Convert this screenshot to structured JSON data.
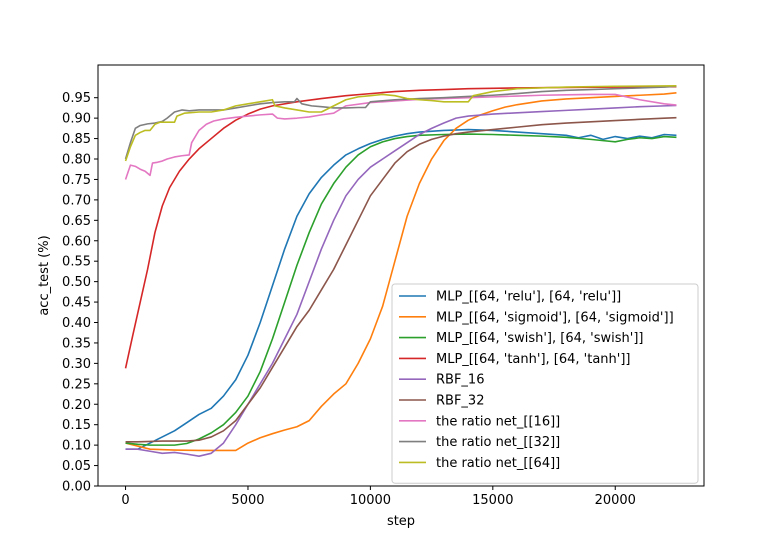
{
  "chart_data": {
    "type": "line",
    "title": "",
    "xlabel": "step",
    "ylabel": "acc_test (%)",
    "xlim": [
      -1125,
      23625
    ],
    "ylim": [
      0.0,
      1.03
    ],
    "xticks": [
      0,
      5000,
      10000,
      15000,
      20000
    ],
    "xtick_labels": [
      "0",
      "5000",
      "10000",
      "15000",
      "20000"
    ],
    "yticks": [
      0.0,
      0.05,
      0.1,
      0.15,
      0.2,
      0.25,
      0.3,
      0.35,
      0.4,
      0.45,
      0.5,
      0.55,
      0.6,
      0.65,
      0.7,
      0.75,
      0.8,
      0.85,
      0.9,
      0.95
    ],
    "ytick_labels": [
      "0.00",
      "0.05",
      "0.10",
      "0.15",
      "0.20",
      "0.25",
      "0.30",
      "0.35",
      "0.40",
      "0.45",
      "0.50",
      "0.55",
      "0.60",
      "0.65",
      "0.70",
      "0.75",
      "0.80",
      "0.85",
      "0.90",
      "0.95"
    ],
    "grid": false,
    "legend_position": "lower-right",
    "series": [
      {
        "name": "MLP_[[64, 'relu'], [64, 'relu']]",
        "color": "#1f77b4",
        "x": [
          0,
          500,
          1000,
          1500,
          2000,
          2500,
          3000,
          3500,
          4000,
          4500,
          5000,
          5500,
          6000,
          6500,
          7000,
          7500,
          8000,
          8500,
          9000,
          9500,
          10000,
          10500,
          11000,
          11500,
          12000,
          13000,
          14000,
          15000,
          16000,
          17000,
          18000,
          18500,
          19000,
          19500,
          20000,
          20500,
          21000,
          21500,
          22000,
          22500
        ],
        "y": [
          0.09,
          0.09,
          0.105,
          0.12,
          0.135,
          0.155,
          0.175,
          0.19,
          0.22,
          0.26,
          0.32,
          0.4,
          0.49,
          0.58,
          0.66,
          0.715,
          0.755,
          0.785,
          0.81,
          0.825,
          0.838,
          0.848,
          0.856,
          0.862,
          0.866,
          0.87,
          0.872,
          0.87,
          0.866,
          0.862,
          0.858,
          0.852,
          0.858,
          0.848,
          0.855,
          0.85,
          0.856,
          0.852,
          0.86,
          0.858
        ]
      },
      {
        "name": "MLP_[[64, 'sigmoid'], [64, 'sigmoid']]",
        "color": "#ff7f0e",
        "x": [
          0,
          1000,
          2000,
          3000,
          4000,
          4500,
          5000,
          5500,
          6000,
          6500,
          7000,
          7500,
          8000,
          8500,
          9000,
          9500,
          10000,
          10500,
          11000,
          11500,
          12000,
          12500,
          13000,
          13500,
          14000,
          14500,
          15000,
          15500,
          16000,
          17000,
          18000,
          19000,
          20000,
          21000,
          22000,
          22500
        ],
        "y": [
          0.105,
          0.09,
          0.088,
          0.087,
          0.087,
          0.087,
          0.105,
          0.118,
          0.128,
          0.137,
          0.145,
          0.16,
          0.195,
          0.225,
          0.25,
          0.3,
          0.36,
          0.44,
          0.55,
          0.66,
          0.74,
          0.8,
          0.845,
          0.875,
          0.895,
          0.908,
          0.918,
          0.927,
          0.933,
          0.942,
          0.947,
          0.95,
          0.953,
          0.956,
          0.959,
          0.962
        ]
      },
      {
        "name": "MLP_[[64, 'swish'], [64, 'swish']]",
        "color": "#2ca02c",
        "x": [
          0,
          500,
          1000,
          1500,
          2000,
          2500,
          3000,
          3500,
          4000,
          4500,
          5000,
          5500,
          6000,
          6500,
          7000,
          7500,
          8000,
          8500,
          9000,
          9500,
          10000,
          10500,
          11000,
          11500,
          12000,
          13000,
          14000,
          15000,
          16000,
          17000,
          18000,
          19000,
          19500,
          20000,
          20500,
          21000,
          21500,
          22000,
          22500
        ],
        "y": [
          0.105,
          0.102,
          0.1,
          0.1,
          0.1,
          0.104,
          0.115,
          0.13,
          0.15,
          0.18,
          0.22,
          0.28,
          0.36,
          0.45,
          0.54,
          0.62,
          0.69,
          0.74,
          0.78,
          0.81,
          0.83,
          0.842,
          0.85,
          0.855,
          0.858,
          0.86,
          0.861,
          0.86,
          0.858,
          0.856,
          0.853,
          0.848,
          0.845,
          0.842,
          0.848,
          0.852,
          0.85,
          0.855,
          0.853
        ]
      },
      {
        "name": "MLP_[[64, 'tanh'], [64, 'tanh']]",
        "color": "#d62728",
        "x": [
          0,
          300,
          600,
          900,
          1200,
          1500,
          1800,
          2200,
          2600,
          3000,
          3500,
          4000,
          4500,
          5000,
          5500,
          6000,
          7000,
          8000,
          9000,
          10000,
          11000,
          12000,
          13000,
          14000,
          15000,
          16000,
          18000,
          20000,
          22500
        ],
        "y": [
          0.288,
          0.37,
          0.45,
          0.53,
          0.62,
          0.685,
          0.73,
          0.77,
          0.8,
          0.825,
          0.85,
          0.875,
          0.895,
          0.91,
          0.922,
          0.93,
          0.94,
          0.948,
          0.955,
          0.96,
          0.965,
          0.968,
          0.97,
          0.972,
          0.973,
          0.974,
          0.975,
          0.976,
          0.977
        ]
      },
      {
        "name": "RBF_16",
        "color": "#9467bd",
        "x": [
          0,
          500,
          1000,
          1500,
          2000,
          2500,
          3000,
          3500,
          4000,
          4500,
          5000,
          5500,
          6000,
          6500,
          7000,
          7500,
          8000,
          8500,
          9000,
          9500,
          10000,
          10500,
          11000,
          11500,
          12000,
          12500,
          13000,
          13500,
          14000,
          15000,
          16000,
          17000,
          18000,
          19000,
          20000,
          21000,
          22000,
          22500
        ],
        "y": [
          0.09,
          0.09,
          0.085,
          0.08,
          0.082,
          0.078,
          0.073,
          0.08,
          0.105,
          0.15,
          0.2,
          0.25,
          0.3,
          0.36,
          0.42,
          0.5,
          0.58,
          0.65,
          0.71,
          0.75,
          0.78,
          0.8,
          0.82,
          0.84,
          0.86,
          0.875,
          0.888,
          0.9,
          0.905,
          0.91,
          0.913,
          0.916,
          0.919,
          0.922,
          0.925,
          0.928,
          0.93,
          0.931
        ]
      },
      {
        "name": "RBF_32",
        "color": "#8c564b",
        "x": [
          0,
          500,
          1000,
          1500,
          2000,
          2500,
          3000,
          3500,
          4000,
          4500,
          5000,
          5500,
          6000,
          6500,
          7000,
          7500,
          8000,
          8500,
          9000,
          9500,
          10000,
          10500,
          11000,
          11500,
          12000,
          12500,
          13000,
          13500,
          14000,
          15000,
          16000,
          17000,
          18000,
          19000,
          20000,
          21000,
          22000,
          22500
        ],
        "y": [
          0.108,
          0.108,
          0.109,
          0.11,
          0.11,
          0.11,
          0.112,
          0.12,
          0.135,
          0.16,
          0.2,
          0.24,
          0.29,
          0.34,
          0.39,
          0.43,
          0.48,
          0.53,
          0.59,
          0.65,
          0.71,
          0.75,
          0.79,
          0.818,
          0.836,
          0.848,
          0.856,
          0.862,
          0.866,
          0.872,
          0.878,
          0.884,
          0.888,
          0.891,
          0.894,
          0.897,
          0.9,
          0.901
        ]
      },
      {
        "name": "the ratio net_[[16]]",
        "color": "#e377c2",
        "x": [
          0,
          200,
          400,
          600,
          800,
          1000,
          1100,
          1300,
          1500,
          1700,
          2000,
          2300,
          2600,
          2700,
          3000,
          3300,
          3600,
          4000,
          4500,
          5000,
          5500,
          6000,
          6200,
          6500,
          7000,
          7500,
          8000,
          8500,
          9000,
          10000,
          11000,
          12000,
          13000,
          14000,
          15000,
          16000,
          17000,
          18000,
          19000,
          20000,
          21000,
          22000,
          22500
        ],
        "y": [
          0.75,
          0.785,
          0.782,
          0.775,
          0.77,
          0.76,
          0.79,
          0.792,
          0.795,
          0.8,
          0.805,
          0.808,
          0.81,
          0.84,
          0.87,
          0.885,
          0.893,
          0.898,
          0.902,
          0.905,
          0.908,
          0.91,
          0.9,
          0.898,
          0.9,
          0.903,
          0.908,
          0.912,
          0.93,
          0.938,
          0.942,
          0.946,
          0.948,
          0.95,
          0.952,
          0.954,
          0.956,
          0.957,
          0.958,
          0.958,
          0.945,
          0.935,
          0.932
        ]
      },
      {
        "name": "the ratio net_[[32]]",
        "color": "#7f7f7f",
        "x": [
          0,
          200,
          400,
          600,
          900,
          1200,
          1500,
          1700,
          2000,
          2300,
          2600,
          3000,
          3500,
          4000,
          4500,
          5000,
          5500,
          6000,
          6500,
          6900,
          7000,
          7200,
          7600,
          8000,
          8500,
          9000,
          9500,
          9800,
          10000,
          11000,
          12000,
          13000,
          14000,
          15000,
          16000,
          17000,
          18000,
          19000,
          20000,
          21000,
          22000,
          22500
        ],
        "y": [
          0.8,
          0.84,
          0.875,
          0.882,
          0.886,
          0.888,
          0.892,
          0.9,
          0.915,
          0.92,
          0.918,
          0.92,
          0.92,
          0.92,
          0.925,
          0.93,
          0.935,
          0.938,
          0.94,
          0.94,
          0.948,
          0.935,
          0.93,
          0.928,
          0.925,
          0.925,
          0.926,
          0.926,
          0.94,
          0.945,
          0.948,
          0.95,
          0.953,
          0.956,
          0.96,
          0.965,
          0.968,
          0.97,
          0.972,
          0.974,
          0.976,
          0.978
        ]
      },
      {
        "name": "the ratio net_[[64]]",
        "color": "#bcbd22",
        "x": [
          0,
          200,
          400,
          600,
          800,
          1000,
          1200,
          1400,
          1600,
          2000,
          2100,
          2400,
          3000,
          3500,
          4000,
          4500,
          5000,
          5500,
          6000,
          6100,
          6500,
          7000,
          7500,
          8000,
          8500,
          9000,
          9500,
          10000,
          10500,
          11000,
          11500,
          12000,
          12500,
          13000,
          13500,
          14000,
          14200,
          15000,
          16000,
          18000,
          20000,
          22500
        ],
        "y": [
          0.795,
          0.83,
          0.858,
          0.865,
          0.87,
          0.87,
          0.885,
          0.89,
          0.89,
          0.89,
          0.905,
          0.912,
          0.915,
          0.915,
          0.92,
          0.93,
          0.935,
          0.94,
          0.945,
          0.93,
          0.925,
          0.92,
          0.915,
          0.915,
          0.93,
          0.945,
          0.952,
          0.955,
          0.958,
          0.955,
          0.948,
          0.945,
          0.943,
          0.94,
          0.94,
          0.94,
          0.955,
          0.965,
          0.972,
          0.976,
          0.978,
          0.979
        ]
      }
    ]
  }
}
